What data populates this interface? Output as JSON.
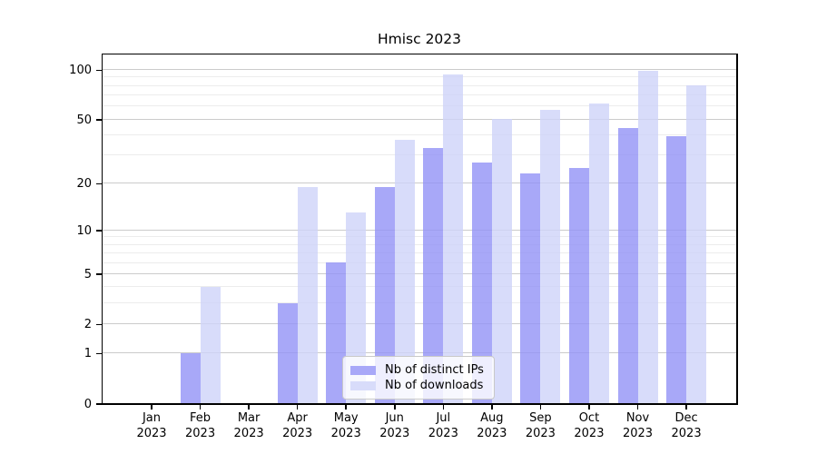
{
  "chart_data": {
    "type": "bar",
    "title": "Hmisc 2023",
    "categories": [
      {
        "month": "Jan",
        "year": "2023"
      },
      {
        "month": "Feb",
        "year": "2023"
      },
      {
        "month": "Mar",
        "year": "2023"
      },
      {
        "month": "Apr",
        "year": "2023"
      },
      {
        "month": "May",
        "year": "2023"
      },
      {
        "month": "Jun",
        "year": "2023"
      },
      {
        "month": "Jul",
        "year": "2023"
      },
      {
        "month": "Aug",
        "year": "2023"
      },
      {
        "month": "Sep",
        "year": "2023"
      },
      {
        "month": "Oct",
        "year": "2023"
      },
      {
        "month": "Nov",
        "year": "2023"
      },
      {
        "month": "Dec",
        "year": "2023"
      }
    ],
    "series": [
      {
        "name": "Nb of distinct IPs",
        "color": "#a8a8f8",
        "values": [
          0,
          1,
          0,
          3,
          6,
          19,
          33,
          27,
          23,
          25,
          44,
          39
        ]
      },
      {
        "name": "Nb of downloads",
        "color": "#d8dcfa",
        "values": [
          0,
          4,
          0,
          19,
          13,
          37,
          93,
          50,
          57,
          62,
          98,
          80
        ]
      }
    ],
    "yscale": "log1p",
    "yticks": [
      0,
      1,
      2,
      5,
      10,
      20,
      50,
      100
    ],
    "minor_yticks": [
      3,
      4,
      6,
      7,
      8,
      9,
      30,
      40,
      60,
      70,
      80,
      90
    ],
    "ylim": [
      0,
      124
    ],
    "xlabel": "",
    "ylabel": "",
    "grid": true,
    "legend_position": "lower-center-inside",
    "colors": {
      "major_grid": "#cbcbcb",
      "minor_grid": "#ececec",
      "spine": "#000000",
      "background": "#ffffff"
    }
  }
}
